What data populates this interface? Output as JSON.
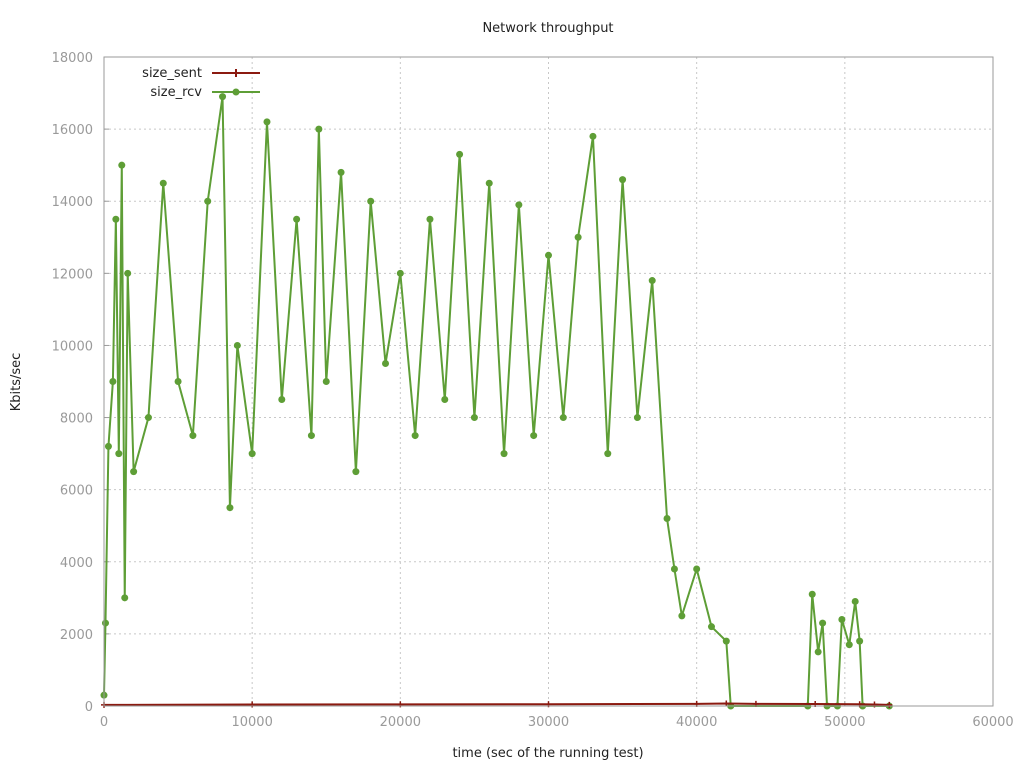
{
  "chart_data": {
    "type": "line",
    "title": "Network throughput",
    "xlabel": "time (sec of the running test)",
    "ylabel": "Kbits/sec",
    "xlim": [
      0,
      60000
    ],
    "ylim": [
      0,
      18000
    ],
    "x_ticks": [
      "0",
      "10000",
      "20000",
      "30000",
      "40000",
      "50000",
      "60000"
    ],
    "y_ticks": [
      "0",
      "2000",
      "4000",
      "6000",
      "8000",
      "10000",
      "12000",
      "14000",
      "16000",
      "18000"
    ],
    "grid": true,
    "legend_position": "top-left",
    "series": [
      {
        "name": "size_sent",
        "color": "#8b1a10",
        "marker": "plus",
        "points": [
          [
            0,
            30
          ],
          [
            10000,
            40
          ],
          [
            20000,
            45
          ],
          [
            30000,
            50
          ],
          [
            40000,
            60
          ],
          [
            42000,
            70
          ],
          [
            44000,
            60
          ],
          [
            48000,
            55
          ],
          [
            51000,
            50
          ],
          [
            52000,
            40
          ],
          [
            53000,
            30
          ]
        ]
      },
      {
        "name": "size_rcv",
        "color": "#5e9e36",
        "marker": "filled-circle",
        "points": [
          [
            0,
            300
          ],
          [
            100,
            2300
          ],
          [
            300,
            7200
          ],
          [
            600,
            9000
          ],
          [
            800,
            13500
          ],
          [
            1000,
            7000
          ],
          [
            1200,
            15000
          ],
          [
            1400,
            3000
          ],
          [
            1600,
            12000
          ],
          [
            2000,
            6500
          ],
          [
            3000,
            8000
          ],
          [
            4000,
            14500
          ],
          [
            5000,
            9000
          ],
          [
            6000,
            7500
          ],
          [
            7000,
            14000
          ],
          [
            8000,
            16900
          ],
          [
            8500,
            5500
          ],
          [
            9000,
            10000
          ],
          [
            10000,
            7000
          ],
          [
            11000,
            16200
          ],
          [
            12000,
            8500
          ],
          [
            13000,
            13500
          ],
          [
            14000,
            7500
          ],
          [
            14500,
            16000
          ],
          [
            15000,
            9000
          ],
          [
            16000,
            14800
          ],
          [
            17000,
            6500
          ],
          [
            18000,
            14000
          ],
          [
            19000,
            9500
          ],
          [
            20000,
            12000
          ],
          [
            21000,
            7500
          ],
          [
            22000,
            13500
          ],
          [
            23000,
            8500
          ],
          [
            24000,
            15300
          ],
          [
            25000,
            8000
          ],
          [
            26000,
            14500
          ],
          [
            27000,
            7000
          ],
          [
            28000,
            13900
          ],
          [
            29000,
            7500
          ],
          [
            30000,
            12500
          ],
          [
            31000,
            8000
          ],
          [
            32000,
            13000
          ],
          [
            33000,
            15800
          ],
          [
            34000,
            7000
          ],
          [
            35000,
            14600
          ],
          [
            36000,
            8000
          ],
          [
            37000,
            11800
          ],
          [
            38000,
            5200
          ],
          [
            38500,
            3800
          ],
          [
            39000,
            2500
          ],
          [
            40000,
            3800
          ],
          [
            41000,
            2200
          ],
          [
            42000,
            1800
          ],
          [
            42300,
            0
          ],
          [
            47500,
            0
          ],
          [
            47800,
            3100
          ],
          [
            48200,
            1500
          ],
          [
            48500,
            2300
          ],
          [
            48800,
            0
          ],
          [
            49500,
            0
          ],
          [
            49800,
            2400
          ],
          [
            50300,
            1700
          ],
          [
            50700,
            2900
          ],
          [
            51000,
            1800
          ],
          [
            51200,
            0
          ],
          [
            53000,
            0
          ]
        ]
      }
    ]
  }
}
